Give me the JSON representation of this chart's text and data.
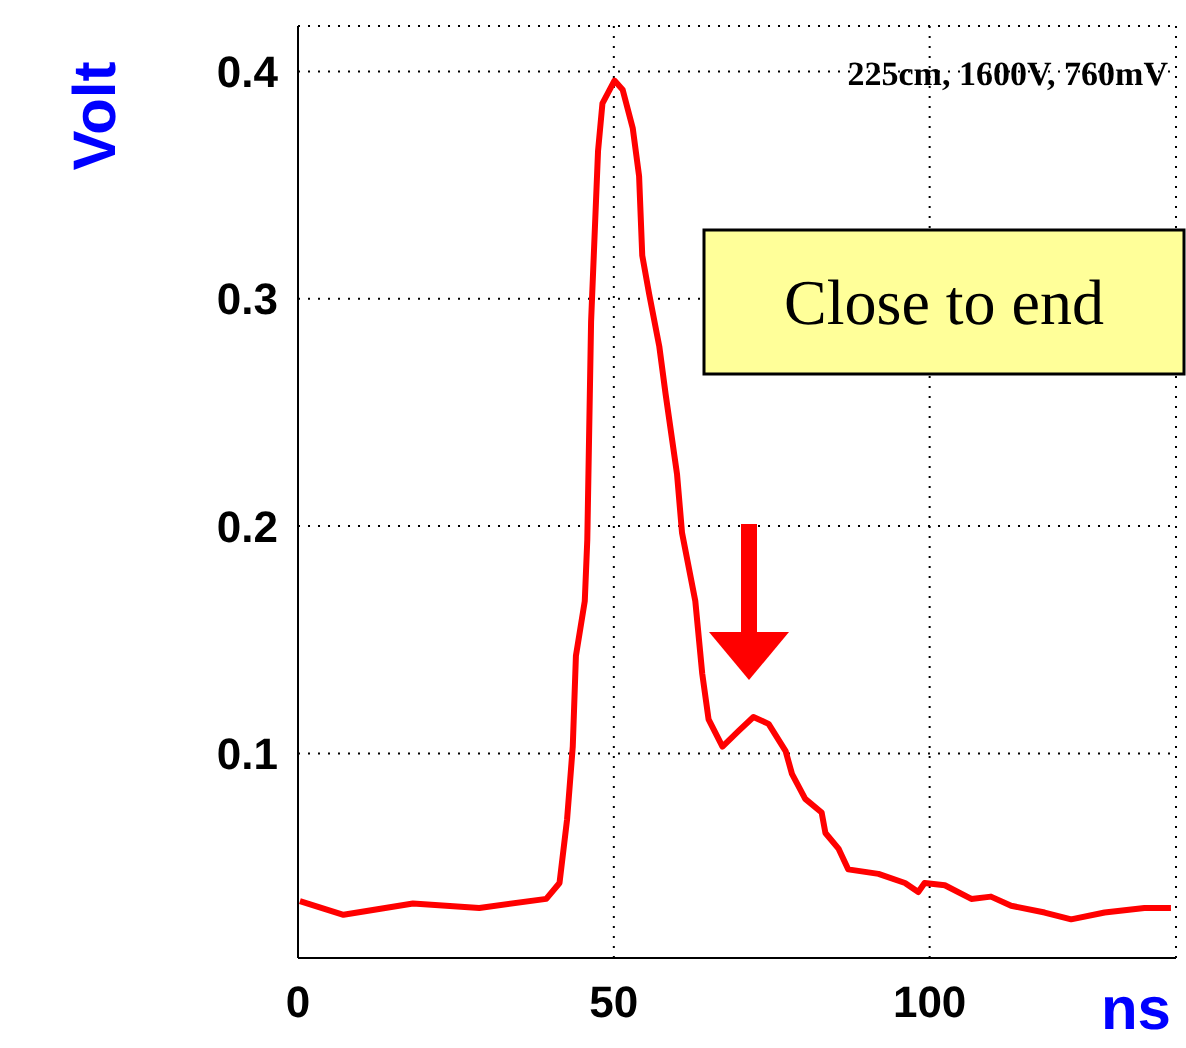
{
  "chart_data": {
    "type": "line",
    "xlabel": "ns",
    "ylabel": "Volt",
    "xlim": [
      0,
      139
    ],
    "ylim": [
      0.01,
      0.42
    ],
    "xticks": [
      0,
      50,
      100
    ],
    "yticks": [
      0.1,
      0.2,
      0.3,
      0.4
    ],
    "grid": true,
    "annotations": [
      "225cm, 1600V, 760mV",
      "Close to end"
    ],
    "series": [
      {
        "color": "#ff0000",
        "x": [
          0.3,
          7.2,
          18.2,
          28.7,
          39.3,
          41.4,
          42.6,
          43.5,
          44,
          45.4,
          45.8,
          46.4,
          47.5,
          48.2,
          50.1,
          51.4,
          53,
          54,
          54.5,
          55.6,
          57.2,
          58.2,
          60,
          60.8,
          62.9,
          64,
          65,
          67.2,
          69.8,
          72.1,
          74.5,
          77.2,
          78.2,
          80.3,
          82.9,
          83.5,
          85.6,
          87.1,
          91.9,
          96.1,
          98.2,
          99.2,
          102.4,
          106.6,
          109.7,
          112.9,
          118.2,
          122.4,
          127.7,
          134,
          138.2
        ],
        "values": [
          0.035,
          0.029,
          0.034,
          0.032,
          0.036,
          0.043,
          0.071,
          0.103,
          0.143,
          0.167,
          0.194,
          0.29,
          0.365,
          0.386,
          0.396,
          0.392,
          0.375,
          0.354,
          0.319,
          0.302,
          0.279,
          0.258,
          0.223,
          0.197,
          0.167,
          0.135,
          0.115,
          0.103,
          0.11,
          0.116,
          0.113,
          0.101,
          0.091,
          0.08,
          0.074,
          0.065,
          0.058,
          0.049,
          0.047,
          0.043,
          0.039,
          0.043,
          0.042,
          0.036,
          0.037,
          0.033,
          0.03,
          0.027,
          0.03,
          0.032,
          0.032
        ]
      }
    ]
  }
}
